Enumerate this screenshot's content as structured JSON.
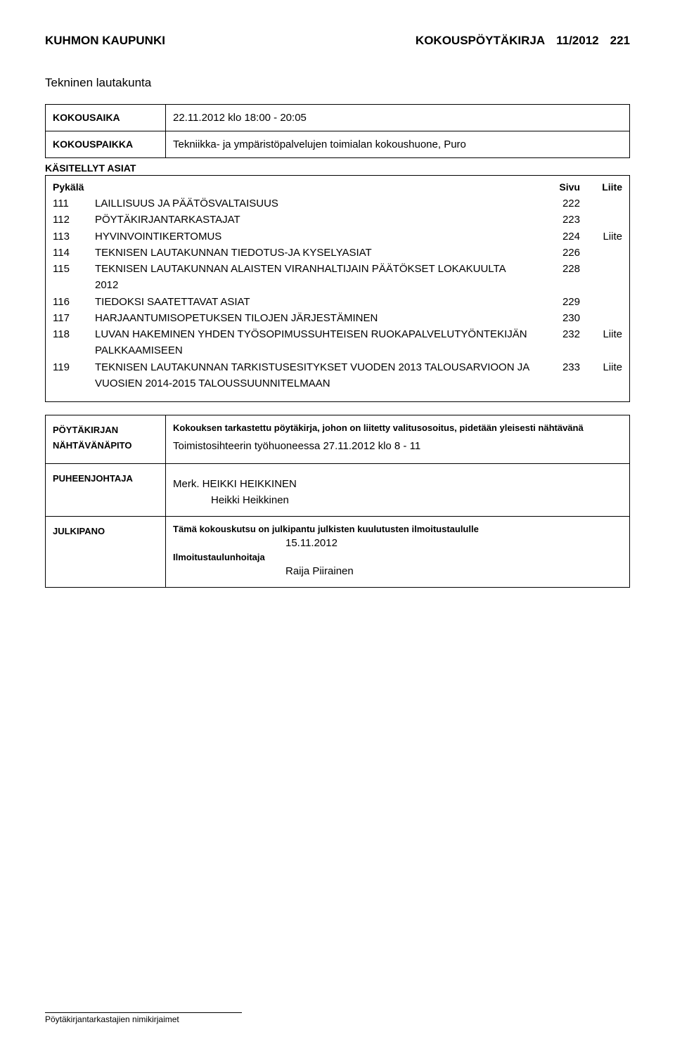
{
  "header": {
    "org": "KUHMON KAUPUNKI",
    "doctype": "KOKOUSPÖYTÄKIRJA",
    "docnum": "11/2012",
    "pagenum": "221"
  },
  "subtitle": "Tekninen lautakunta",
  "info": {
    "kokousaika_label": "KOKOUSAIKA",
    "kokousaika_value": "22.11.2012 klo 18:00 - 20:05",
    "kokouspaikka_label": "KOKOUSPAIKKA",
    "kokouspaikka_value": "Tekniikka- ja ympäristöpalvelujen toimialan kokoushuone, Puro"
  },
  "asiat": {
    "heading": "KÄSITELLYT ASIAT",
    "head_pykala": "Pykälä",
    "head_sivu": "Sivu",
    "head_liite": "Liite",
    "rows": [
      {
        "pykala": "111",
        "title": "LAILLISUUS JA PÄÄTÖSVALTAISUUS",
        "sivu": "222",
        "liite": ""
      },
      {
        "pykala": "112",
        "title": "PÖYTÄKIRJANTARKASTAJAT",
        "sivu": "223",
        "liite": ""
      },
      {
        "pykala": "113",
        "title": "HYVINVOINTIKERTOMUS",
        "sivu": "224",
        "liite": "Liite"
      },
      {
        "pykala": "114",
        "title": "TEKNISEN LAUTAKUNNAN TIEDOTUS-JA KYSELYASIAT",
        "sivu": "226",
        "liite": ""
      },
      {
        "pykala": "115",
        "title": "TEKNISEN LAUTAKUNNAN ALAISTEN VIRANHALTIJAIN PÄÄTÖKSET LOKAKUULTA 2012",
        "sivu": "228",
        "liite": ""
      },
      {
        "pykala": "116",
        "title": "TIEDOKSI SAATETTAVAT ASIAT",
        "sivu": "229",
        "liite": ""
      },
      {
        "pykala": "117",
        "title": "HARJAANTUMISOPETUKSEN TILOJEN JÄRJESTÄMINEN",
        "sivu": "230",
        "liite": ""
      },
      {
        "pykala": "118",
        "title": "LUVAN HAKEMINEN YHDEN TYÖSOPIMUSSUHTEISEN RUOKAPALVELUTYÖNTEKIJÄN PALKKAAMISEEN",
        "sivu": "232",
        "liite": "Liite"
      },
      {
        "pykala": "119",
        "title": "TEKNISEN LAUTAKUNNAN TARKISTUSESITYKSET VUODEN 2013 TALOUSARVIOON JA VUOSIEN 2014-2015 TALOUSSUUNNITELMAAN",
        "sivu": "233",
        "liite": "Liite"
      }
    ]
  },
  "bottom": {
    "poytak_label1": "PÖYTÄKIRJAN",
    "poytak_label2": "NÄHTÄVÄNÄPITO",
    "poytak_line1": "Kokouksen tarkastettu pöytäkirja, johon on liitetty valitusosoitus, pidetään yleisesti nähtävänä",
    "poytak_line2": "Toimistosihteerin työhuoneessa  27.11.2012 klo 8 - 11",
    "puheenjohtaja_label": "PUHEENJOHTAJA",
    "puheenjohtaja_line1": "Merk. HEIKKI HEIKKINEN",
    "puheenjohtaja_line2": "Heikki Heikkinen",
    "julkipano_label": "JULKIPANO",
    "julkipano_line1": "Tämä kokouskutsu on julkipantu julkisten kuulutusten ilmoitustaululle",
    "julkipano_date": "15.11.2012",
    "julkipano_line3": "Ilmoitustaulunhoitaja",
    "julkipano_name": "Raija Piirainen"
  },
  "footer": "Pöytäkirjantarkastajien nimikirjaimet"
}
